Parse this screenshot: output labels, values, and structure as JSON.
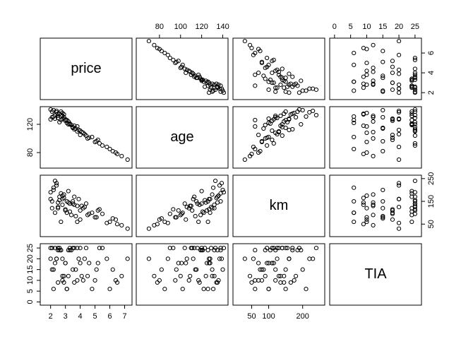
{
  "chart_data": {
    "type": "scatter_matrix",
    "variables": [
      {
        "name": "price",
        "lim": [
          1.3,
          7.5
        ],
        "xticks": [
          2,
          3,
          4,
          5,
          6,
          7
        ],
        "yticks": [
          2,
          4,
          6
        ],
        "values": [
          2.1,
          2.5,
          2.8,
          3.0,
          3.3,
          2.2,
          4.5,
          5.0,
          6.0,
          6.5,
          7.2,
          3.8,
          2.6,
          3.1,
          2.9,
          4.0,
          5.5,
          2.4,
          3.5,
          2.0,
          4.2,
          3.6,
          2.7,
          5.2,
          6.2,
          3.2,
          2.3,
          4.8,
          3.9,
          2.5,
          3.4,
          2.8,
          4.4,
          3.0,
          5.8,
          2.2,
          3.7,
          2.6,
          4.1,
          3.3,
          2.9,
          6.8,
          2.4,
          3.5,
          4.6,
          2.1,
          3.8,
          5.3,
          2.7,
          3.1,
          4.3,
          2.3,
          3.6,
          2.8,
          5.1,
          3.2,
          2.5,
          4.0,
          2.0,
          6.4
        ]
      },
      {
        "name": "age",
        "lim": [
          58,
          145
        ],
        "xticks": [
          80,
          100,
          120,
          140
        ],
        "yticks": [
          80,
          120
        ],
        "values": [
          138,
          132,
          128,
          125,
          120,
          140,
          100,
          95,
          85,
          78,
          70,
          110,
          135,
          122,
          130,
          105,
          90,
          137,
          115,
          141,
          108,
          118,
          126,
          98,
          82,
          124,
          133,
          102,
          112,
          129,
          119,
          136,
          104,
          127,
          88,
          131,
          114,
          123,
          109,
          121,
          134,
          75,
          139,
          116,
          101,
          130,
          117,
          93,
          138,
          126,
          106,
          128,
          113,
          132,
          96,
          120,
          135,
          111,
          127,
          80
        ]
      },
      {
        "name": "km",
        "lim": [
          -5,
          265
        ],
        "xticks": [
          50,
          100,
          200
        ],
        "yticks": [
          50,
          150,
          250
        ],
        "values": [
          150,
          120,
          160,
          110,
          140,
          200,
          90,
          80,
          60,
          50,
          30,
          130,
          170,
          100,
          180,
          70,
          95,
          220,
          150,
          190,
          120,
          135,
          60,
          110,
          75,
          145,
          240,
          100,
          160,
          125,
          90,
          175,
          140,
          115,
          55,
          210,
          85,
          155,
          130,
          105,
          165,
          45,
          230,
          140,
          95,
          120,
          60,
          115,
          185,
          150,
          125,
          100,
          170,
          135,
          80,
          195,
          145,
          110,
          160,
          70
        ]
      },
      {
        "name": "TIA",
        "lim": [
          -1.5,
          27
        ],
        "xticks": [
          0,
          5,
          10,
          15,
          20,
          25
        ],
        "yticks": [
          0,
          5,
          10,
          15,
          20,
          25
        ],
        "values": [
          25,
          24,
          20,
          18,
          25,
          15,
          12,
          10,
          6,
          9,
          20,
          25,
          24,
          6,
          12,
          18,
          25,
          20,
          15,
          25,
          10,
          9,
          24,
          18,
          15,
          12,
          25,
          6,
          20,
          25,
          24,
          10,
          25,
          18,
          20,
          6,
          15,
          25,
          12,
          24,
          9,
          12,
          20,
          25,
          18,
          15,
          10,
          25,
          24,
          6,
          20,
          18,
          25,
          12,
          15,
          24,
          9,
          25,
          20,
          10
        ]
      }
    ]
  }
}
